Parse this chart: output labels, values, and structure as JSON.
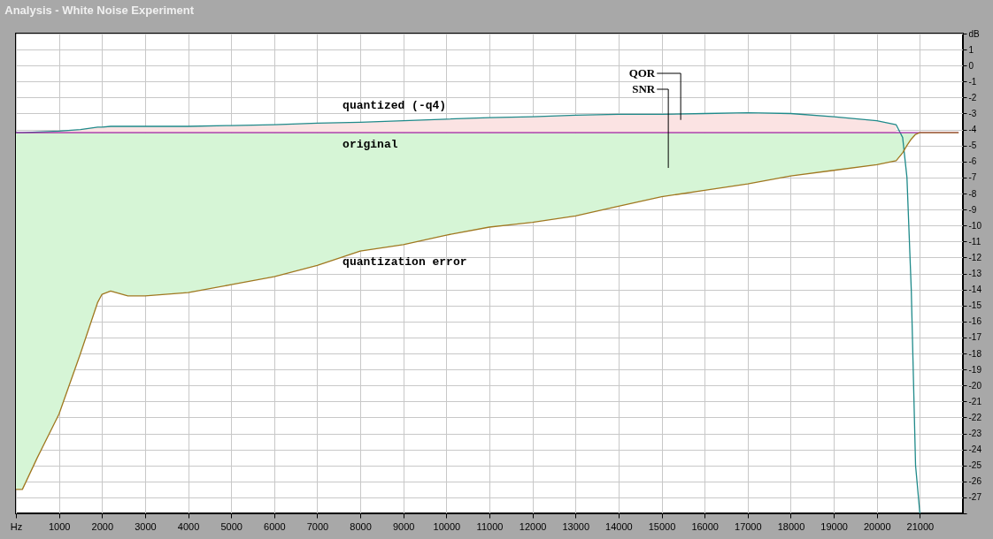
{
  "chart_data": {
    "type": "line",
    "title": "Analysis - White Noise Experiment",
    "x": [
      0,
      150,
      500,
      1000,
      1500,
      1900,
      2000,
      2200,
      2600,
      3000,
      4000,
      5000,
      6000,
      7000,
      8000,
      9000,
      10000,
      11000,
      12000,
      13000,
      14000,
      15000,
      16000,
      17000,
      18000,
      19000,
      20000,
      20450,
      20600,
      20700,
      20800,
      20900,
      21000,
      21900
    ],
    "series": [
      {
        "name": "quantized (-q4)",
        "color": "#1f8a8a",
        "values": [
          -4.2,
          -4.2,
          -4.15,
          -4.1,
          -4.0,
          -3.85,
          -3.85,
          -3.8,
          -3.8,
          -3.8,
          -3.8,
          -3.75,
          -3.7,
          -3.6,
          -3.55,
          -3.45,
          -3.35,
          -3.25,
          -3.2,
          -3.1,
          -3.05,
          -3.05,
          -3.0,
          -2.95,
          -3.0,
          -3.2,
          -3.45,
          -3.7,
          -4.5,
          -7,
          -14,
          -25,
          -28,
          null
        ],
        "lower": [
          -4.2,
          -4.2,
          -4.2,
          -4.2,
          -4.2,
          -4.2,
          -4.2,
          -4.2,
          -4.2,
          -4.2,
          -4.2,
          -4.2,
          -4.2,
          -4.2,
          -4.2,
          -4.2,
          -4.2,
          -4.2,
          -4.2,
          -4.2,
          -4.2,
          -4.2,
          -4.2,
          -4.2,
          -4.2,
          -4.2,
          -4.2,
          -4.2,
          null,
          null,
          null,
          null,
          null,
          null
        ],
        "upper": [
          -4.2,
          -4.2,
          -4.15,
          -4.1,
          -4.0,
          -3.85,
          -3.85,
          -3.8,
          -3.8,
          -3.8,
          -3.8,
          -3.75,
          -3.7,
          -3.6,
          -3.55,
          -3.45,
          -3.35,
          -3.25,
          -3.2,
          -3.1,
          -3.05,
          -3.05,
          -3.0,
          -2.95,
          -3.0,
          -3.2,
          -3.45,
          -3.7,
          null,
          null,
          null,
          null,
          null,
          null
        ]
      },
      {
        "name": "original",
        "color": "#a020a0",
        "values": [
          -4.2,
          -4.2,
          -4.2,
          -4.2,
          -4.2,
          -4.2,
          -4.2,
          -4.2,
          -4.2,
          -4.2,
          -4.2,
          -4.2,
          -4.2,
          -4.2,
          -4.2,
          -4.2,
          -4.2,
          -4.2,
          -4.2,
          -4.2,
          -4.2,
          -4.2,
          -4.2,
          -4.2,
          -4.2,
          -4.2,
          -4.2,
          -4.2,
          -4.2,
          -4.2,
          -4.2,
          -4.2,
          -4.2,
          -4.2
        ],
        "upper": [
          -4.2,
          -4.2,
          -4.2,
          -4.2,
          -4.2,
          -4.2,
          -4.2,
          -4.2,
          -4.2,
          -4.2,
          -4.2,
          -4.2,
          -4.2,
          -4.2,
          -4.2,
          -4.2,
          -4.2,
          -4.2,
          -4.2,
          -4.2,
          -4.2,
          -4.2,
          -4.2,
          -4.2,
          -4.2,
          -4.2,
          -4.2,
          -4.2,
          -4.2,
          -4.2,
          -4.2,
          -4.2,
          -4.2,
          -4.2
        ],
        "lower": [
          -26.5,
          -26.5,
          -24.5,
          -21.8,
          -18,
          -14.8,
          -14.3,
          -14.1,
          -14.4,
          -14.4,
          -14.2,
          -13.7,
          -13.2,
          -12.5,
          -11.6,
          -11.2,
          -10.6,
          -10.1,
          -9.8,
          -9.4,
          -8.8,
          -8.2,
          -7.8,
          -7.4,
          -6.9,
          -6.55,
          -6.2,
          -5.95,
          -5.45,
          -5.0,
          -4.6,
          -4.3,
          -4.2,
          -4.2
        ]
      },
      {
        "name": "quantization error",
        "color": "#a07820",
        "values": [
          -26.5,
          -26.5,
          -24.5,
          -21.8,
          -18,
          -14.8,
          -14.3,
          -14.1,
          -14.4,
          -14.4,
          -14.2,
          -13.7,
          -13.2,
          -12.5,
          -11.6,
          -11.2,
          -10.6,
          -10.1,
          -9.8,
          -9.4,
          -8.8,
          -8.2,
          -7.8,
          -7.4,
          -6.9,
          -6.55,
          -6.2,
          -5.95,
          -5.45,
          -5.0,
          -4.6,
          -4.3,
          -4.2,
          -4.2
        ]
      }
    ],
    "xlim": [
      0,
      22000
    ],
    "xticks": [
      {
        "value": 0,
        "label": "Hz"
      },
      1000,
      2000,
      3000,
      4000,
      5000,
      6000,
      7000,
      8000,
      9000,
      10000,
      11000,
      12000,
      13000,
      14000,
      15000,
      16000,
      17000,
      18000,
      19000,
      20000,
      21000
    ],
    "ylim": [
      -28,
      2
    ],
    "yticks": [
      {
        "value": 2,
        "label": "dB"
      },
      1,
      0,
      -1,
      -2,
      -3,
      -4,
      -5,
      -6,
      -7,
      -8,
      -9,
      -10,
      -11,
      -12,
      -13,
      -14,
      -15,
      -16,
      -17,
      -18,
      -19,
      -20,
      -21,
      -22,
      -23,
      -24,
      -25,
      -26,
      -27,
      {
        "value": -28,
        "label": null
      }
    ],
    "grid": true,
    "annotations": [
      "QOR",
      "SNR"
    ]
  }
}
